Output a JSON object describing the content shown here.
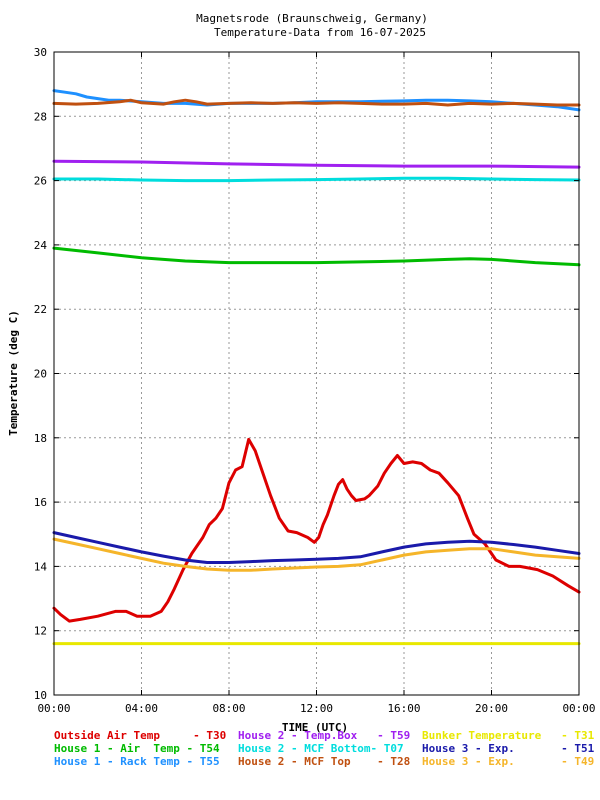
{
  "chart_data": {
    "type": "line",
    "title_lines": [
      "Magnetsrode (Braunschweig, Germany)",
      "Temperature-Data from 16-07-2025"
    ],
    "xlabel": "TIME (UTC)",
    "ylabel": "Temperature (deg C)",
    "xlim": [
      0,
      24
    ],
    "ylim": [
      10,
      30
    ],
    "x_ticks": [
      {
        "v": 0,
        "label": "00:00"
      },
      {
        "v": 4,
        "label": "04:00"
      },
      {
        "v": 8,
        "label": "08:00"
      },
      {
        "v": 12,
        "label": "12:00"
      },
      {
        "v": 16,
        "label": "16:00"
      },
      {
        "v": 20,
        "label": "20:00"
      },
      {
        "v": 24,
        "label": "00:00"
      }
    ],
    "y_ticks": [
      {
        "v": 10,
        "label": "10"
      },
      {
        "v": 12,
        "label": "12"
      },
      {
        "v": 14,
        "label": "14"
      },
      {
        "v": 16,
        "label": "16"
      },
      {
        "v": 18,
        "label": "18"
      },
      {
        "v": 20,
        "label": "20"
      },
      {
        "v": 22,
        "label": "22"
      },
      {
        "v": 24,
        "label": "24"
      },
      {
        "v": 26,
        "label": "26"
      },
      {
        "v": 28,
        "label": "28"
      },
      {
        "v": 30,
        "label": "30"
      }
    ],
    "grid": true,
    "legend_position": "bottom",
    "series": [
      {
        "name": "Outside Air Temp     - T30",
        "color": "#dd0000",
        "x": [
          0,
          0.3,
          0.7,
          1.2,
          2,
          2.8,
          3.3,
          3.8,
          4.4,
          4.9,
          5.2,
          5.5,
          5.9,
          6.3,
          6.8,
          7.1,
          7.4,
          7.7,
          8,
          8.3,
          8.6,
          8.9,
          9.2,
          9.5,
          9.9,
          10.3,
          10.7,
          11.1,
          11.6,
          11.9,
          12.1,
          12.3,
          12.5,
          12.8,
          13,
          13.2,
          13.4,
          13.6,
          13.8,
          14.2,
          14.4,
          14.8,
          15.1,
          15.4,
          15.7,
          16,
          16.4,
          16.8,
          17.2,
          17.6,
          18,
          18.5,
          18.9,
          19.2,
          19.7,
          20.2,
          20.8,
          21.3,
          22.1,
          22.8,
          23.5,
          24
        ],
        "y": [
          12.7,
          12.5,
          12.3,
          12.35,
          12.45,
          12.6,
          12.6,
          12.45,
          12.45,
          12.6,
          12.9,
          13.3,
          13.9,
          14.4,
          14.9,
          15.3,
          15.5,
          15.8,
          16.6,
          17.0,
          17.1,
          17.95,
          17.6,
          17.0,
          16.2,
          15.5,
          15.1,
          15.05,
          14.9,
          14.75,
          14.9,
          15.3,
          15.6,
          16.2,
          16.55,
          16.7,
          16.4,
          16.2,
          16.05,
          16.1,
          16.2,
          16.5,
          16.9,
          17.2,
          17.45,
          17.2,
          17.25,
          17.2,
          17.0,
          16.9,
          16.6,
          16.2,
          15.5,
          15.0,
          14.7,
          14.2,
          14.0,
          14.0,
          13.9,
          13.7,
          13.4,
          13.2
        ]
      },
      {
        "name": "House 1 - Air  Temp - T54",
        "color": "#00bb00",
        "x": [
          0,
          2,
          4,
          6,
          8,
          10,
          12,
          14,
          16,
          18,
          19,
          20,
          22,
          24
        ],
        "y": [
          23.9,
          23.75,
          23.6,
          23.5,
          23.45,
          23.45,
          23.45,
          23.47,
          23.5,
          23.55,
          23.57,
          23.55,
          23.45,
          23.38
        ]
      },
      {
        "name": "House 1 - Rack Temp - T55",
        "color": "#1e90ff",
        "x": [
          0,
          0.5,
          1,
          1.5,
          2,
          2.5,
          3,
          4,
          5,
          6,
          7,
          8,
          9,
          10,
          11,
          12,
          13,
          14,
          15,
          16,
          17,
          18,
          19,
          20,
          21,
          22,
          23,
          24
        ],
        "y": [
          28.8,
          28.75,
          28.7,
          28.6,
          28.55,
          28.5,
          28.5,
          28.45,
          28.4,
          28.4,
          28.35,
          28.4,
          28.4,
          28.4,
          28.42,
          28.45,
          28.45,
          28.45,
          28.47,
          28.48,
          28.5,
          28.5,
          28.48,
          28.45,
          28.4,
          28.35,
          28.3,
          28.2
        ]
      },
      {
        "name": "House 2 - Temp.Box   - T59",
        "color": "#a020f0",
        "x": [
          0,
          4,
          8,
          12,
          16,
          20,
          24
        ],
        "y": [
          26.6,
          26.58,
          26.52,
          26.48,
          26.45,
          26.45,
          26.42
        ]
      },
      {
        "name": "House 2 - MCF Bottom- T07",
        "color": "#00dddd",
        "x": [
          0,
          2,
          4,
          6,
          8,
          10,
          12,
          14,
          16,
          18,
          20,
          22,
          24
        ],
        "y": [
          26.05,
          26.05,
          26.02,
          26.0,
          26.0,
          26.02,
          26.03,
          26.05,
          26.07,
          26.07,
          26.05,
          26.03,
          26.02
        ]
      },
      {
        "name": "House 2 - MCF Top    - T28",
        "color": "#c05010",
        "x": [
          0,
          1,
          2,
          3,
          3.5,
          4,
          5,
          5.5,
          6,
          6.5,
          7,
          8,
          9,
          10,
          11,
          12,
          13,
          14,
          15,
          16,
          17,
          18,
          19,
          20,
          21,
          22,
          23,
          24
        ],
        "y": [
          28.4,
          28.38,
          28.4,
          28.45,
          28.5,
          28.42,
          28.38,
          28.45,
          28.5,
          28.45,
          28.38,
          28.4,
          28.42,
          28.4,
          28.42,
          28.4,
          28.42,
          28.4,
          28.38,
          28.38,
          28.4,
          28.35,
          28.4,
          28.38,
          28.4,
          28.38,
          28.35,
          28.35
        ]
      },
      {
        "name": "Bunker Temperature   - T31",
        "color": "#e8e800",
        "x": [
          0,
          24
        ],
        "y": [
          11.6,
          11.6
        ]
      },
      {
        "name": "House 3 - Exp.       - T51",
        "color": "#1a1aaa",
        "x": [
          0,
          1,
          2,
          3,
          4,
          5,
          6,
          7,
          8,
          9,
          10,
          11,
          12,
          13,
          14,
          15,
          16,
          17,
          18,
          19,
          20,
          21,
          22,
          23,
          24
        ],
        "y": [
          15.05,
          14.9,
          14.75,
          14.6,
          14.45,
          14.32,
          14.2,
          14.12,
          14.12,
          14.15,
          14.18,
          14.2,
          14.22,
          14.25,
          14.3,
          14.45,
          14.6,
          14.7,
          14.75,
          14.78,
          14.75,
          14.68,
          14.6,
          14.5,
          14.4
        ]
      },
      {
        "name": "House 3 - Exp.       - T49",
        "color": "#f5b52a",
        "x": [
          0,
          1,
          2,
          3,
          4,
          5,
          6,
          7,
          8,
          9,
          10,
          11,
          12,
          13,
          14,
          15,
          16,
          17,
          18,
          19,
          20,
          21,
          22,
          23,
          24
        ],
        "y": [
          14.85,
          14.7,
          14.55,
          14.4,
          14.25,
          14.1,
          14.0,
          13.92,
          13.88,
          13.88,
          13.92,
          13.95,
          13.98,
          14.0,
          14.05,
          14.2,
          14.35,
          14.45,
          14.5,
          14.55,
          14.55,
          14.45,
          14.35,
          14.3,
          14.25
        ]
      }
    ]
  }
}
